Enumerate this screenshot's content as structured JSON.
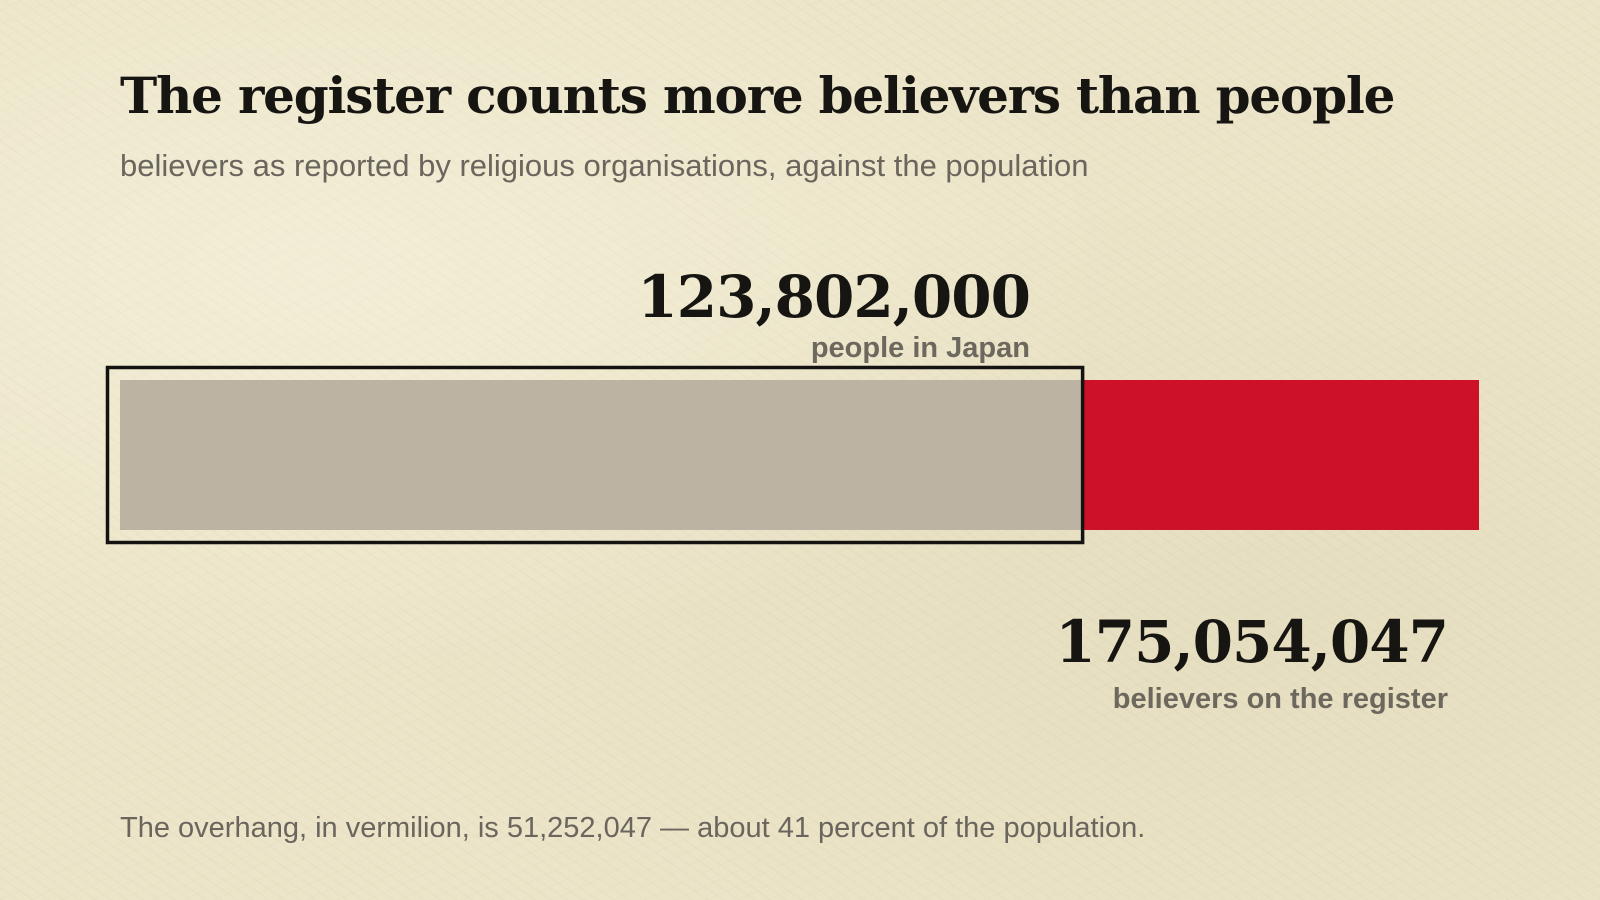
{
  "chart_data": {
    "type": "bar",
    "title": "The register counts more believers than people",
    "subtitle": "believers as reported by religious organisations, against the population",
    "population": {
      "value": 123802000,
      "value_label": "123,802,000",
      "caption": "people in Japan"
    },
    "register": {
      "value": 175054047,
      "value_label": "175,054,047",
      "caption": "believers on the register"
    },
    "overhang": {
      "value": 51252047,
      "percent_of_population": 41
    },
    "footnote": "The overhang, in vermilion, is 51,252,047 — about 41 percent of the population.",
    "colors": {
      "population_bar": "#bdb3a3",
      "overhang_bar": "#cc1128",
      "outline": "#141311",
      "background": "#ece5c9"
    }
  }
}
